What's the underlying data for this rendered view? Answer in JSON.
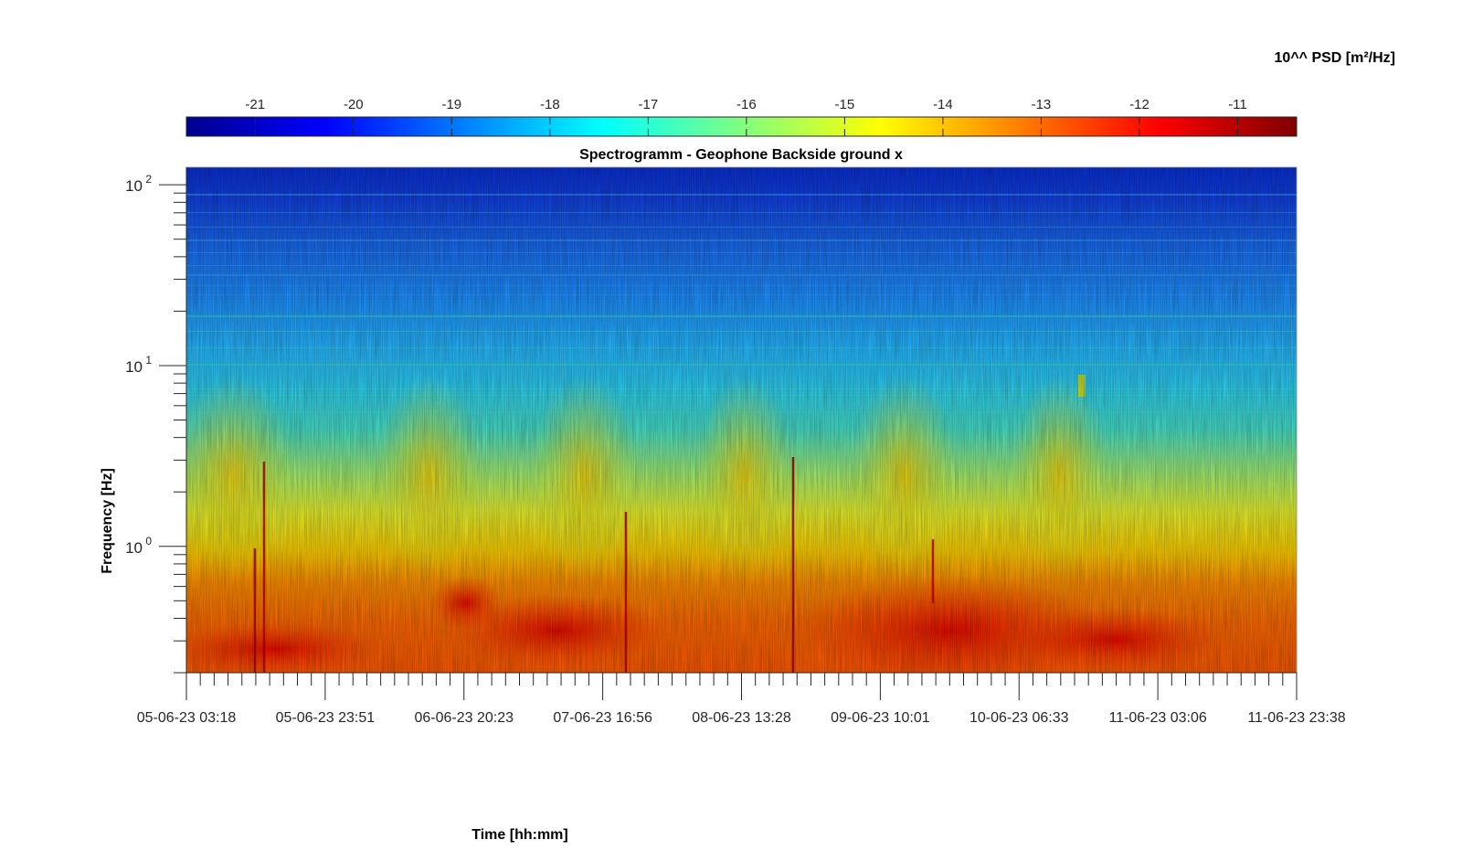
{
  "chart_data": {
    "type": "heatmap",
    "title": "Spectrogramm - Geophone Backside ground x",
    "xlabel": "Time [hh:mm]",
    "ylabel": "Frequency [Hz]",
    "x_scale": "time",
    "y_scale": "log",
    "ylim": [
      0.2,
      125
    ],
    "xlim": [
      "05-06-23 03:18",
      "11-06-23 23:38"
    ],
    "x_ticks": [
      "05-06-23 03:18",
      "05-06-23 23:51",
      "06-06-23 20:23",
      "07-06-23 16:56",
      "08-06-23 13:28",
      "09-06-23 10:01",
      "10-06-23 06:33",
      "11-06-23 03:06",
      "11-06-23 23:38"
    ],
    "y_ticks": [
      {
        "base": "10",
        "exp": "0",
        "value": 1
      },
      {
        "base": "10",
        "exp": "1",
        "value": 10
      },
      {
        "base": "10",
        "exp": "2",
        "value": 100
      }
    ],
    "colorbar": {
      "label": "10^^ PSD [m²/Hz]",
      "colormap": "jet",
      "range": [
        -21.7,
        -10.4
      ],
      "ticks": [
        "-21",
        "-20",
        "-19",
        "-18",
        "-17",
        "-16",
        "-15",
        "-14",
        "-13",
        "-12",
        "-11"
      ],
      "position": "top"
    },
    "description_levels": {
      "low_freq_band_0.2_to_0.7Hz": -12.5,
      "mid_band_1_to_3Hz": -15,
      "high_band_20_to_125Hz": -19.5
    }
  }
}
